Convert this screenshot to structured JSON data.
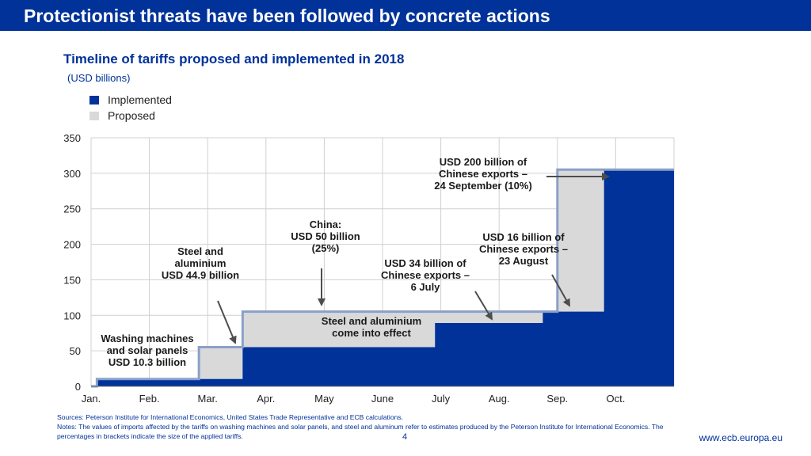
{
  "header": {
    "title": "Protectionist threats have been followed by concrete actions"
  },
  "chart_data": {
    "type": "area",
    "title": "Timeline of tariffs proposed and implemented in 2018",
    "subtitle": "(USD billions)",
    "ylim": [
      0,
      350
    ],
    "yticks": [
      0,
      50,
      100,
      150,
      200,
      250,
      300,
      350
    ],
    "months": [
      "Jan.",
      "Feb.",
      "Mar.",
      "Apr.",
      "May",
      "June",
      "July",
      "Aug.",
      "Sep.",
      "Oct."
    ],
    "legend": [
      {
        "name": "Implemented",
        "color": "#003299"
      },
      {
        "name": "Proposed",
        "color": "#d9d9d9"
      }
    ],
    "series": [
      {
        "name": "Implemented",
        "color": "#003299",
        "steps": [
          {
            "from": 0.1,
            "value": 10.3
          },
          {
            "from": 2.6,
            "value": 55.2
          },
          {
            "from": 5.9,
            "value": 89.2
          },
          {
            "from": 7.75,
            "value": 105.2
          },
          {
            "from": 8.8,
            "value": 305.2
          }
        ]
      },
      {
        "name": "Proposed",
        "color": "#d9d9d9",
        "steps": [
          {
            "from": 0.1,
            "value": 10.3
          },
          {
            "from": 1.85,
            "value": 55.2
          },
          {
            "from": 2.6,
            "value": 105.2
          },
          {
            "from": 8.0,
            "value": 105.2
          },
          {
            "from": 8.0,
            "value": 305.2
          }
        ]
      }
    ],
    "annotations": [
      {
        "id": "washing",
        "lines": [
          "Washing machines",
          "and solar panels",
          "USD 10.3 billion"
        ]
      },
      {
        "id": "steel",
        "lines": [
          "Steel and",
          "aluminium",
          "USD 44.9 billion"
        ]
      },
      {
        "id": "china50",
        "lines": [
          "China:",
          "USD 50 billion",
          "(25%)"
        ]
      },
      {
        "id": "steel_effect",
        "lines": [
          "Steel and aluminium",
          "come into effect"
        ]
      },
      {
        "id": "usd34",
        "lines": [
          "USD 34 billion of",
          "Chinese exports –",
          "6 July"
        ]
      },
      {
        "id": "usd16",
        "lines": [
          "USD 16 billion of",
          "Chinese exports –",
          "23 August"
        ]
      },
      {
        "id": "usd200",
        "lines": [
          "USD 200 billion of",
          "Chinese exports –",
          "24 September (10%)"
        ]
      }
    ]
  },
  "footer": {
    "sources": "Sources: Peterson Institute for International Economics, United States Trade Representative and ECB calculations.",
    "notes": "Notes: The values of imports affected by the tariffs on washing machines and solar panels, and steel and aluminum refer to estimates produced by the Peterson Institute for International Economics. The percentages in brackets indicate the size of the applied tariffs.",
    "page_number": "4",
    "url": "www.ecb.europa.eu"
  }
}
